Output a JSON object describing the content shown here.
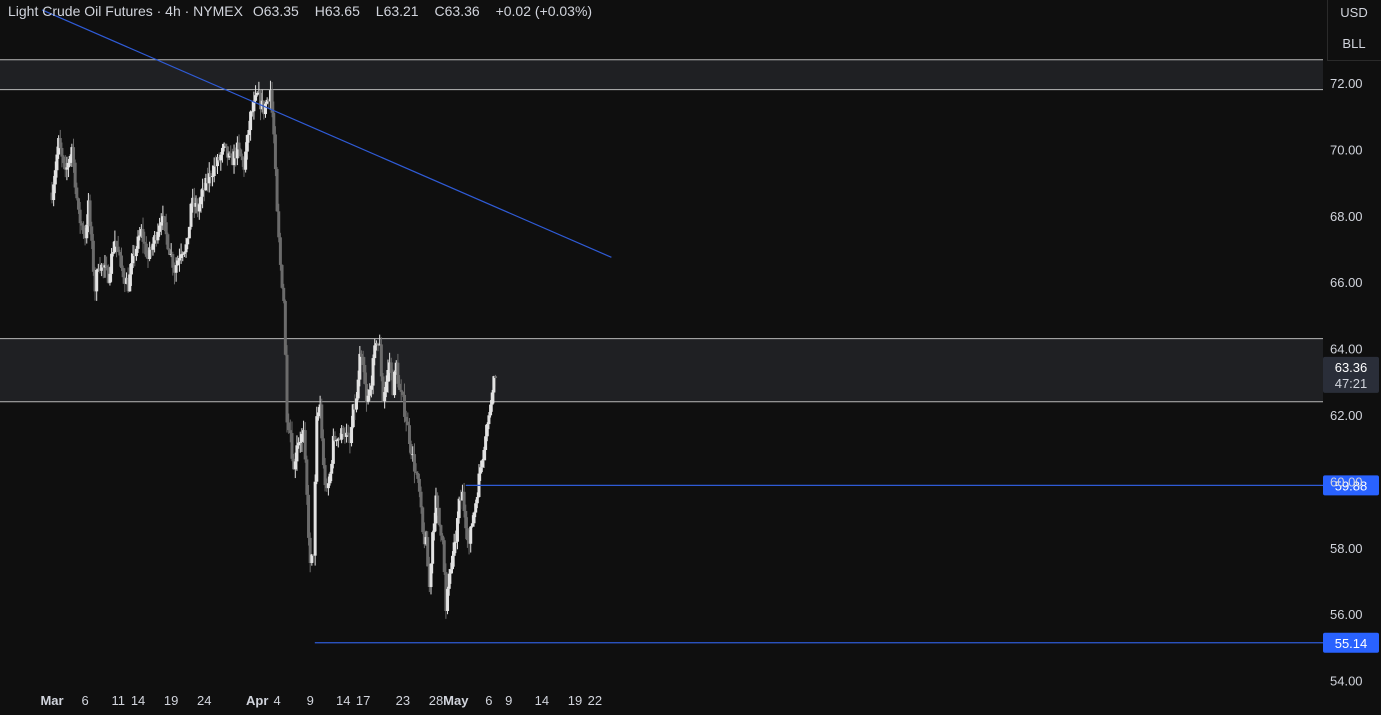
{
  "header": {
    "title": "Light Crude Oil Futures · 4h · NYMEX",
    "open_label": "O",
    "open": "63.35",
    "high_label": "H",
    "high": "63.65",
    "low_label": "L",
    "low": "63.21",
    "close_label": "C",
    "close": "63.36",
    "change": "+0.02 (+0.03%)"
  },
  "scale_menu": {
    "currency": "USD",
    "unit": "BLL"
  },
  "price_tag": {
    "price": "63.36",
    "countdown": "47:21"
  },
  "chart_data": {
    "type": "candlestick",
    "title": "Light Crude Oil Futures · 4h · NYMEX",
    "ylim": [
      54,
      73.5
    ],
    "y_ticks": [
      "72.00",
      "70.00",
      "68.00",
      "66.00",
      "64.00",
      "62.00",
      "60.00",
      "58.00",
      "56.00",
      "54.00"
    ],
    "y_tick_values": [
      72,
      70,
      68,
      66,
      64,
      62,
      60,
      58,
      56,
      54
    ],
    "x_ticks": [
      {
        "label": "Mar",
        "day": 0,
        "bold": true
      },
      {
        "label": "6",
        "day": 5
      },
      {
        "label": "11",
        "day": 10
      },
      {
        "label": "14",
        "day": 13
      },
      {
        "label": "19",
        "day": 18
      },
      {
        "label": "24",
        "day": 23
      },
      {
        "label": "Apr",
        "day": 31,
        "bold": true
      },
      {
        "label": "4",
        "day": 34
      },
      {
        "label": "9",
        "day": 39
      },
      {
        "label": "14",
        "day": 44
      },
      {
        "label": "17",
        "day": 47
      },
      {
        "label": "23",
        "day": 53
      },
      {
        "label": "28",
        "day": 58
      },
      {
        "label": "May",
        "day": 61,
        "bold": true
      },
      {
        "label": "6",
        "day": 66
      },
      {
        "label": "9",
        "day": 69
      },
      {
        "label": "14",
        "day": 74
      },
      {
        "label": "19",
        "day": 79
      },
      {
        "label": "22",
        "day": 82
      }
    ],
    "zones": [
      {
        "name": "resistance-zone-top",
        "from": 71.8,
        "to": 72.7
      },
      {
        "name": "middle-zone",
        "from": 62.4,
        "to": 64.3
      }
    ],
    "trendline": {
      "points": [
        [
          -1.5,
          74.2
        ],
        [
          84.5,
          66.75
        ]
      ]
    },
    "levels": [
      {
        "name": "level-59-88",
        "price": 59.88,
        "label": "59.88",
        "from_day": 62.5
      },
      {
        "name": "level-55-14",
        "price": 55.14,
        "label": "55.14",
        "from_day": 39.7
      }
    ],
    "current_price": 63.36,
    "series": [
      {
        "day": 0,
        "price": 68.7
      },
      {
        "day": 1,
        "price": 70.2
      },
      {
        "day": 2,
        "price": 69.2
      },
      {
        "day": 3,
        "price": 70.1
      },
      {
        "day": 4,
        "price": 68.0
      },
      {
        "day": 5,
        "price": 67.4
      },
      {
        "day": 5.5,
        "price": 68.3
      },
      {
        "day": 6.5,
        "price": 65.8
      },
      {
        "day": 7,
        "price": 66.6
      },
      {
        "day": 8.5,
        "price": 66.2
      },
      {
        "day": 9.5,
        "price": 67.3
      },
      {
        "day": 10.5,
        "price": 66.4
      },
      {
        "day": 11.5,
        "price": 65.9
      },
      {
        "day": 12.5,
        "price": 66.9
      },
      {
        "day": 13.5,
        "price": 67.5
      },
      {
        "day": 14.5,
        "price": 66.7
      },
      {
        "day": 15.5,
        "price": 67.3
      },
      {
        "day": 16.5,
        "price": 68.0
      },
      {
        "day": 17.5,
        "price": 67.2
      },
      {
        "day": 18.5,
        "price": 66.4
      },
      {
        "day": 19.5,
        "price": 67.0
      },
      {
        "day": 20.5,
        "price": 67.1
      },
      {
        "day": 21,
        "price": 68.4
      },
      {
        "day": 22,
        "price": 68.2
      },
      {
        "day": 23,
        "price": 68.8
      },
      {
        "day": 24,
        "price": 69.3
      },
      {
        "day": 25,
        "price": 69.6
      },
      {
        "day": 26,
        "price": 70.0
      },
      {
        "day": 27,
        "price": 69.6
      },
      {
        "day": 28,
        "price": 70.0
      },
      {
        "day": 29,
        "price": 69.5
      },
      {
        "day": 30,
        "price": 71.0
      },
      {
        "day": 31,
        "price": 71.6
      },
      {
        "day": 32,
        "price": 71.2
      },
      {
        "day": 33,
        "price": 71.8
      },
      {
        "day": 33.5,
        "price": 70.4
      },
      {
        "day": 34,
        "price": 68.0
      },
      {
        "day": 34.5,
        "price": 66.5
      },
      {
        "day": 35,
        "price": 65.5
      },
      {
        "day": 35.5,
        "price": 62.0
      },
      {
        "day": 36,
        "price": 61.5
      },
      {
        "day": 36.5,
        "price": 60.3
      },
      {
        "day": 37,
        "price": 61.2
      },
      {
        "day": 38,
        "price": 61.4
      },
      {
        "day": 38.5,
        "price": 59.5
      },
      {
        "day": 39,
        "price": 57.4
      },
      {
        "day": 39.5,
        "price": 57.9
      },
      {
        "day": 40,
        "price": 61.8
      },
      {
        "day": 40.5,
        "price": 62.3
      },
      {
        "day": 41,
        "price": 60.4
      },
      {
        "day": 41.5,
        "price": 59.6
      },
      {
        "day": 42,
        "price": 60.2
      },
      {
        "day": 42.5,
        "price": 61.2
      },
      {
        "day": 43,
        "price": 61.4
      },
      {
        "day": 43.5,
        "price": 61.3
      },
      {
        "day": 44,
        "price": 61.6
      },
      {
        "day": 45,
        "price": 61.1
      },
      {
        "day": 45.5,
        "price": 62.1
      },
      {
        "day": 46,
        "price": 62.4
      },
      {
        "day": 46.5,
        "price": 63.7
      },
      {
        "day": 47,
        "price": 63.4
      },
      {
        "day": 47.5,
        "price": 62.3
      },
      {
        "day": 48,
        "price": 62.7
      },
      {
        "day": 48.5,
        "price": 63.5
      },
      {
        "day": 49,
        "price": 64.3
      },
      {
        "day": 49.5,
        "price": 64.0
      },
      {
        "day": 50,
        "price": 62.5
      },
      {
        "day": 50.5,
        "price": 63.0
      },
      {
        "day": 51,
        "price": 63.6
      },
      {
        "day": 51.5,
        "price": 62.8
      },
      {
        "day": 52,
        "price": 63.5
      },
      {
        "day": 52.5,
        "price": 62.7
      },
      {
        "day": 53,
        "price": 62.4
      },
      {
        "day": 53.5,
        "price": 61.9
      },
      {
        "day": 54,
        "price": 61.3
      },
      {
        "day": 54.5,
        "price": 60.7
      },
      {
        "day": 55,
        "price": 60.2
      },
      {
        "day": 55.5,
        "price": 59.6
      },
      {
        "day": 56,
        "price": 58.4
      },
      {
        "day": 56.5,
        "price": 58.1
      },
      {
        "day": 57,
        "price": 56.8
      },
      {
        "day": 57.5,
        "price": 58.5
      },
      {
        "day": 58,
        "price": 59.4
      },
      {
        "day": 58.5,
        "price": 58.7
      },
      {
        "day": 59,
        "price": 58.4
      },
      {
        "day": 59.5,
        "price": 56.0
      },
      {
        "day": 60,
        "price": 57.2
      },
      {
        "day": 60.5,
        "price": 57.6
      },
      {
        "day": 61,
        "price": 58.3
      },
      {
        "day": 61.5,
        "price": 59.3
      },
      {
        "day": 62,
        "price": 59.6
      },
      {
        "day": 62.5,
        "price": 58.8
      },
      {
        "day": 63,
        "price": 58.1
      },
      {
        "day": 63.5,
        "price": 58.8
      },
      {
        "day": 64,
        "price": 59.4
      },
      {
        "day": 64.5,
        "price": 60.1
      },
      {
        "day": 65,
        "price": 60.8
      },
      {
        "day": 65.5,
        "price": 61.5
      },
      {
        "day": 66,
        "price": 61.9
      },
      {
        "day": 66.5,
        "price": 62.9
      },
      {
        "day": 67,
        "price": 63.3
      }
    ]
  }
}
